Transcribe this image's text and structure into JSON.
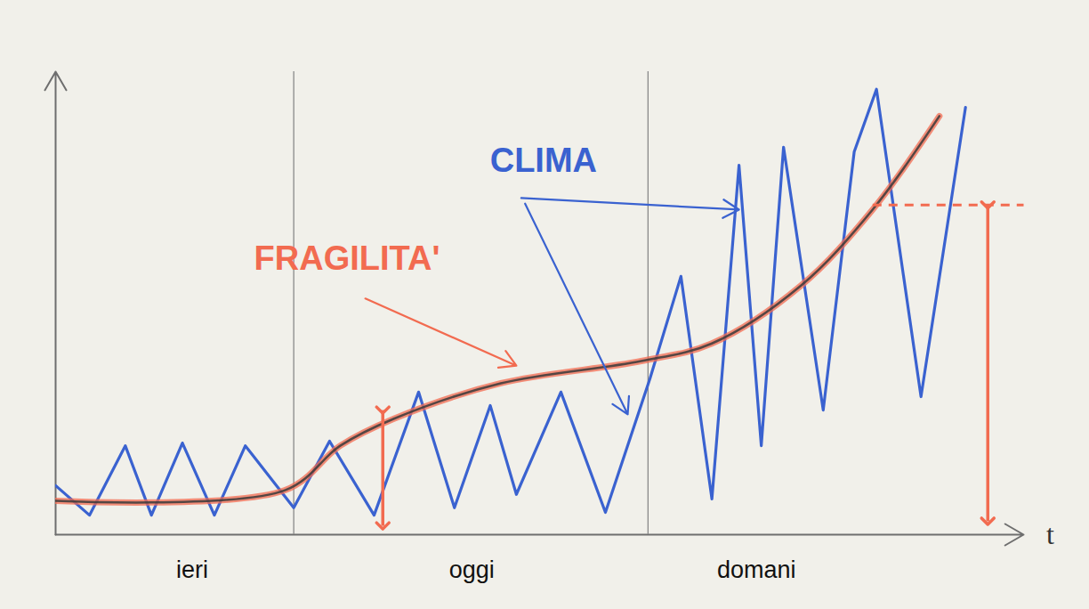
{
  "chart_data": {
    "type": "line",
    "x_label": "t",
    "xlim": [
      0,
      100
    ],
    "ylim": [
      0,
      100
    ],
    "xticks": [],
    "yticks": [],
    "tick_labels": false,
    "series": [
      {
        "name": "CLIMA",
        "color": "#3a62d0",
        "x": [
          0,
          3.5,
          7.2,
          9.9,
          13.1,
          16.4,
          19.6,
          24.6,
          28.3,
          32.9,
          37.5,
          41.2,
          44.9,
          47.6,
          52.2,
          56.8,
          61.4,
          64.6,
          67.8,
          70.6,
          72.9,
          75.2,
          79.3,
          82.5,
          84.8,
          89.4,
          94.0
        ],
        "values": [
          10.6,
          4.2,
          19.2,
          4.2,
          19.8,
          4.2,
          19.2,
          5.8,
          20.2,
          4.2,
          30.8,
          5.8,
          27.9,
          8.7,
          30.8,
          4.8,
          33.7,
          55.8,
          7.7,
          79.8,
          19.2,
          83.7,
          26.9,
          82.7,
          96.2,
          29.8,
          92.3
        ],
        "label_x": 50.4,
        "label_y": 80.8,
        "pointers": [
          {
            "x1": 48.1,
            "y1": 72.7,
            "x2": 70.6,
            "y2": 70.2
          },
          {
            "x1": 48.5,
            "y1": 71.5,
            "x2": 59.1,
            "y2": 26.0
          }
        ]
      },
      {
        "name": "FRAGILITA'",
        "color": "#f26b50",
        "x": [
          0,
          23.7,
          29.4,
          34.9,
          46.0,
          60.5,
          67.8,
          77.0,
          84.4,
          91.3
        ],
        "values": [
          7.3,
          9.6,
          19.2,
          25.0,
          32.7,
          37.5,
          41.3,
          53.8,
          70.2,
          90.4
        ],
        "label_x": 30.1,
        "label_y": 59.6,
        "pointers": [
          {
            "x1": 32.0,
            "y1": 51.0,
            "x2": 47.6,
            "y2": 36.5
          }
        ]
      }
    ],
    "dividers": [
      24.6,
      61.2
    ],
    "periods": [
      {
        "label": "ieri",
        "x": 14.1
      },
      {
        "label": "oggi",
        "x": 43.0
      },
      {
        "label": "domani",
        "x": 72.4
      }
    ],
    "range_arrows": [
      {
        "x": 33.8,
        "y1": 26.9,
        "y2": 1.9
      },
      {
        "x": 96.3,
        "y1": 71.2,
        "y2": 2.9
      }
    ],
    "guide": {
      "x1": 84.4,
      "x2": 100,
      "y": 71.2
    }
  }
}
